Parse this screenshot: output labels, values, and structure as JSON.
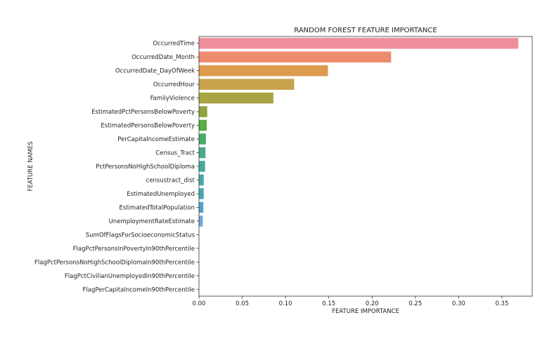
{
  "chart_data": {
    "type": "bar",
    "orientation": "horizontal",
    "title": "RANDOM FOREST FEATURE IMPORTANCE",
    "xlabel": "FEATURE IMPORTANCE",
    "ylabel": "FEATURE NAMES",
    "xlim": [
      0,
      0.385
    ],
    "xticks": [
      "0.00",
      "0.05",
      "0.10",
      "0.15",
      "0.20",
      "0.25",
      "0.30",
      "0.35"
    ],
    "xtick_values": [
      0,
      0.05,
      0.1,
      0.15,
      0.2,
      0.25,
      0.3,
      0.35
    ],
    "grid": false,
    "categories": [
      "OccurredTime",
      "OccurredDate_Month",
      "OccurredDate_DayOfWeek",
      "OccurredHour",
      "FamilyViolence",
      "EstimatedPctPersonsBelowPoverty",
      "EstimatedPersonsBelowPoverty",
      "PerCapitaIncomeEstimate",
      "Census_Tract",
      "PctPersonsNoHighSchoolDiploma",
      "censustract_dist",
      "EstimatedUnemployed",
      "EstimatedTotalPopulation",
      "UnemploymentRateEstimate",
      "SumOfFlagsForSocioeconomicStatus",
      "FlagPctPersonsInPovertyIn90thPercentile",
      "FlagPctPersonsNoHighSchoolDiplomaIn90thPercentile",
      "FlagPctCivilianUnemployedIn90thPercentile",
      "FlagPerCapitaIncomeIn90thPercentile"
    ],
    "values": [
      0.369,
      0.222,
      0.149,
      0.11,
      0.086,
      0.0095,
      0.009,
      0.008,
      0.0075,
      0.007,
      0.0055,
      0.0055,
      0.005,
      0.0045,
      0.0003,
      0.0002,
      0.0002,
      0.0001,
      0.0001
    ],
    "colors": [
      "#f08f9b",
      "#ed8b6f",
      "#dd9a4f",
      "#c9a24d",
      "#a9a443",
      "#8da43f",
      "#59ad43",
      "#45ad6c",
      "#45ab8c",
      "#46a89b",
      "#47a7a8",
      "#48a6b4",
      "#4ea3c5",
      "#77a3db",
      "#a8a0e5",
      "#c79be6",
      "#dc94e1",
      "#eb8fd0",
      "#f090b6"
    ]
  }
}
